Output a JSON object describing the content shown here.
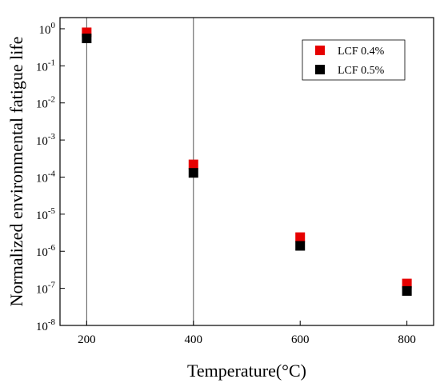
{
  "chart_data": {
    "type": "scatter",
    "title": "",
    "xlabel": "Temperature(°C)",
    "ylabel": "Normalized environmental fatigue life",
    "xlim": [
      150,
      850
    ],
    "ylim": [
      1e-08,
      2
    ],
    "y_scale": "log",
    "x_ticks": [
      200,
      400,
      600,
      800
    ],
    "x_tick_labels": [
      "200",
      "400",
      "600",
      "800"
    ],
    "y_ticks": [
      {
        "value": 1,
        "base": "10",
        "exp": "0"
      },
      {
        "value": 0.1,
        "base": "10",
        "exp": "-1"
      },
      {
        "value": 0.01,
        "base": "10",
        "exp": "-2"
      },
      {
        "value": 0.001,
        "base": "10",
        "exp": "-3"
      },
      {
        "value": 0.0001,
        "base": "10",
        "exp": "-4"
      },
      {
        "value": 1e-05,
        "base": "10",
        "exp": "-5"
      },
      {
        "value": 1e-06,
        "base": "10",
        "exp": "-6"
      },
      {
        "value": 1e-07,
        "base": "10",
        "exp": "-7"
      },
      {
        "value": 1e-08,
        "base": "10",
        "exp": "-8"
      }
    ],
    "reference_lines_x": [
      200,
      400
    ],
    "grid": false,
    "legend_position": "top-right",
    "series": [
      {
        "name": "LCF 0.4%",
        "color": "#e60000",
        "marker": "square",
        "x": [
          200,
          400,
          600,
          800
        ],
        "y": [
          0.8,
          0.00022,
          2.4e-06,
          1.35e-07
        ]
      },
      {
        "name": "LCF 0.5%",
        "color": "#000000",
        "marker": "square",
        "x": [
          200,
          400,
          600,
          800
        ],
        "y": [
          0.55,
          0.00013,
          1.4e-06,
          8.5e-08
        ]
      }
    ]
  }
}
